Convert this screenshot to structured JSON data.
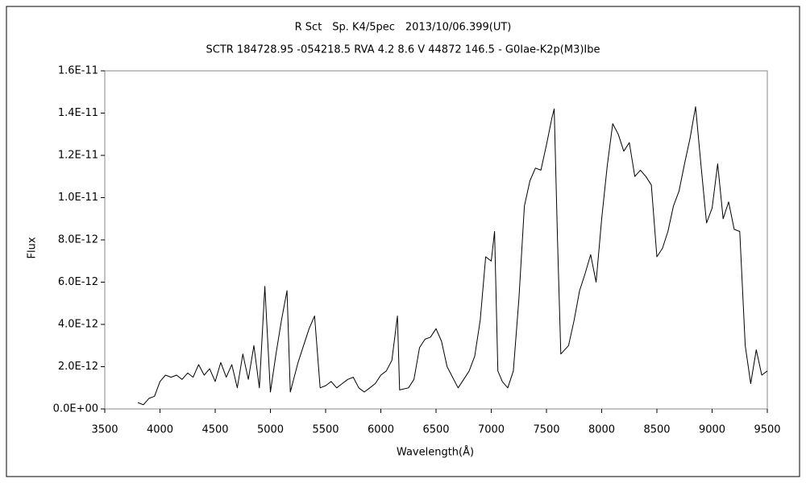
{
  "chart_data": {
    "type": "line",
    "title": "R Sct　Sp. K4/5pec　2013/10/06.399(UT)",
    "subtitle": "SCTR 184728.95 -054218.5 RVA 4.2 8.6 V 44872 146.5 - G0Iae-K2p(M3)Ibe",
    "x_label": "Wavelength(Å)",
    "y_label": "Flux",
    "xlim": [
      3500,
      9500
    ],
    "xticks": [
      3500,
      4000,
      4500,
      5000,
      5500,
      6000,
      6500,
      7000,
      7500,
      8000,
      8500,
      9000,
      9500
    ],
    "ylim": [
      0,
      1.6e-11
    ],
    "yticks": [
      {
        "value": 0,
        "label": "0.0E+00"
      },
      {
        "value": 2e-12,
        "label": "2.0E-12"
      },
      {
        "value": 4e-12,
        "label": "4.0E-12"
      },
      {
        "value": 6e-12,
        "label": "6.0E-12"
      },
      {
        "value": 8e-12,
        "label": "8.0E-12"
      },
      {
        "value": 1e-11,
        "label": "1.0E-11"
      },
      {
        "value": 1.2e-11,
        "label": "1.2E-11"
      },
      {
        "value": 1.4e-11,
        "label": "1.4E-11"
      },
      {
        "value": 1.6e-11,
        "label": "1.6E-11"
      }
    ],
    "grid": false,
    "color": "#000000",
    "x": [
      3800,
      3850,
      3900,
      3950,
      4000,
      4050,
      4100,
      4150,
      4200,
      4250,
      4300,
      4350,
      4400,
      4450,
      4500,
      4550,
      4600,
      4650,
      4700,
      4750,
      4800,
      4850,
      4900,
      4950,
      5000,
      5050,
      5100,
      5150,
      5180,
      5250,
      5300,
      5350,
      5400,
      5450,
      5500,
      5550,
      5600,
      5650,
      5700,
      5750,
      5800,
      5850,
      5900,
      5950,
      6000,
      6050,
      6100,
      6150,
      6170,
      6250,
      6300,
      6350,
      6400,
      6450,
      6500,
      6550,
      6600,
      6650,
      6700,
      6750,
      6800,
      6850,
      6900,
      6950,
      7000,
      7030,
      7060,
      7100,
      7150,
      7200,
      7250,
      7300,
      7350,
      7400,
      7450,
      7500,
      7550,
      7570,
      7600,
      7630,
      7700,
      7750,
      7800,
      7850,
      7900,
      7950,
      8000,
      8050,
      8100,
      8150,
      8200,
      8250,
      8300,
      8350,
      8400,
      8450,
      8500,
      8550,
      8600,
      8650,
      8700,
      8750,
      8800,
      8850,
      8900,
      8950,
      9000,
      9050,
      9100,
      9150,
      9200,
      9250,
      9300,
      9350,
      9400,
      9450,
      9500
    ],
    "values": [
      3e-13,
      2e-13,
      5e-13,
      6e-13,
      1.3e-12,
      1.6e-12,
      1.5e-12,
      1.6e-12,
      1.4e-12,
      1.7e-12,
      1.5e-12,
      2.1e-12,
      1.6e-12,
      1.9e-12,
      1.3e-12,
      2.2e-12,
      1.5e-12,
      2.1e-12,
      1e-12,
      2.6e-12,
      1.4e-12,
      3e-12,
      1e-12,
      5.8e-12,
      8e-13,
      2.6e-12,
      4.2e-12,
      5.6e-12,
      8e-13,
      2.2e-12,
      3e-12,
      3.8e-12,
      4.4e-12,
      1e-12,
      1.1e-12,
      1.3e-12,
      1e-12,
      1.2e-12,
      1.4e-12,
      1.5e-12,
      1e-12,
      8e-13,
      1e-12,
      1.2e-12,
      1.6e-12,
      1.8e-12,
      2.3e-12,
      4.4e-12,
      9e-13,
      1e-12,
      1.4e-12,
      2.9e-12,
      3.3e-12,
      3.4e-12,
      3.8e-12,
      3.2e-12,
      2e-12,
      1.5e-12,
      1e-12,
      1.4e-12,
      1.8e-12,
      2.5e-12,
      4.2e-12,
      7.2e-12,
      7e-12,
      8.4e-12,
      1.8e-12,
      1.3e-12,
      1e-12,
      1.8e-12,
      5.2e-12,
      9.6e-12,
      1.08e-11,
      1.14e-11,
      1.13e-11,
      1.25e-11,
      1.38e-11,
      1.42e-11,
      8e-12,
      2.6e-12,
      3e-12,
      4.2e-12,
      5.6e-12,
      6.4e-12,
      7.3e-12,
      6e-12,
      9e-12,
      1.15e-11,
      1.35e-11,
      1.3e-11,
      1.22e-11,
      1.26e-11,
      1.1e-11,
      1.13e-11,
      1.1e-11,
      1.06e-11,
      7.2e-12,
      7.6e-12,
      8.4e-12,
      9.6e-12,
      1.03e-11,
      1.16e-11,
      1.28e-11,
      1.43e-11,
      1.15e-11,
      8.8e-12,
      9.5e-12,
      1.16e-11,
      9e-12,
      9.8e-12,
      8.5e-12,
      8.4e-12,
      3e-12,
      1.2e-12,
      2.8e-12,
      1.6e-12,
      1.8e-12
    ]
  }
}
